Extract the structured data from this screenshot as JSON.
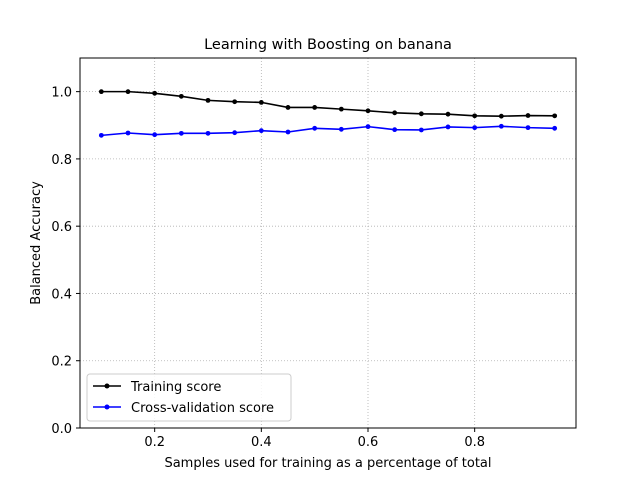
{
  "chart_data": {
    "type": "line",
    "title": "Learning with Boosting on banana",
    "xlabel": "Samples used for training as a percentage of total",
    "ylabel": "Balanced Accuracy",
    "xlim": [
      0.06,
      0.99
    ],
    "ylim": [
      0.0,
      1.1
    ],
    "xticks": [
      0.2,
      0.4,
      0.6,
      0.8
    ],
    "xtick_labels": [
      "0.2",
      "0.4",
      "0.6",
      "0.8"
    ],
    "yticks": [
      0.0,
      0.2,
      0.4,
      0.6,
      0.8,
      1.0
    ],
    "ytick_labels": [
      "0.0",
      "0.2",
      "0.4",
      "0.6",
      "0.8",
      "1.0"
    ],
    "grid": true,
    "legend_position": "lower-left",
    "x": [
      0.1,
      0.15,
      0.2,
      0.25,
      0.3,
      0.35,
      0.4,
      0.45,
      0.5,
      0.55,
      0.6,
      0.65,
      0.7,
      0.75,
      0.8,
      0.85,
      0.9,
      0.95
    ],
    "series": [
      {
        "name": "Training score",
        "color": "#000000",
        "values": [
          1.0,
          1.0,
          0.995,
          0.986,
          0.974,
          0.97,
          0.968,
          0.953,
          0.953,
          0.948,
          0.943,
          0.937,
          0.934,
          0.933,
          0.928,
          0.927,
          0.929,
          0.928
        ]
      },
      {
        "name": "Cross-validation score",
        "color": "#0000ff",
        "values": [
          0.87,
          0.877,
          0.872,
          0.876,
          0.876,
          0.878,
          0.884,
          0.88,
          0.891,
          0.888,
          0.896,
          0.887,
          0.886,
          0.895,
          0.893,
          0.897,
          0.893,
          0.891
        ]
      }
    ]
  }
}
